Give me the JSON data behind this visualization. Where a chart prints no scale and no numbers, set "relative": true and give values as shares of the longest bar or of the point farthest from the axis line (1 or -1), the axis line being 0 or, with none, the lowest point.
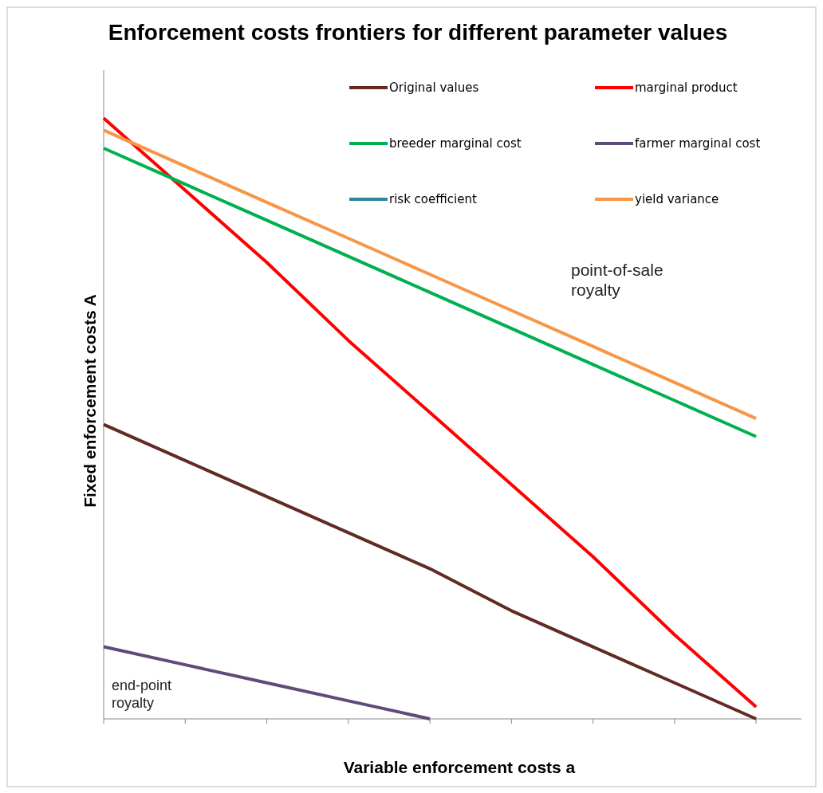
{
  "chart_data": {
    "type": "line",
    "title": "Enforcement costs frontiers for different parameter values",
    "xlabel": "Variable enforcement costs a",
    "ylabel": "Fixed enforcement costs A",
    "relative": true,
    "categories": [
      null,
      null,
      null,
      null,
      null,
      null,
      null,
      null,
      null
    ],
    "series": [
      {
        "name": "Original values",
        "color": "#632a24",
        "values": [
          0.49,
          0.43,
          0.37,
          0.31,
          0.25,
          0.18,
          0.12,
          0.06,
          0
        ]
      },
      {
        "name": "marginal product",
        "color": "#ff0000",
        "values": [
          1,
          0.88,
          0.76,
          0.63,
          0.51,
          0.39,
          0.27,
          0.14,
          0.02
        ]
      },
      {
        "name": "breeder marginal cost",
        "color": "#00b050",
        "values": [
          0.95,
          0.89,
          0.83,
          0.77,
          0.71,
          0.65,
          0.59,
          0.53,
          0.47
        ]
      },
      {
        "name": "farmer marginal cost",
        "color": "#604a7b",
        "values": [
          0.12,
          0.09,
          0.06,
          0.03,
          0,
          null,
          null,
          null,
          null
        ]
      },
      {
        "name": "risk coefficient",
        "color": "#31849b",
        "values": [
          null,
          null,
          null,
          null,
          null,
          null,
          null,
          null,
          null
        ]
      },
      {
        "name": "yield variance",
        "color": "#f79646",
        "values": [
          0.98,
          0.92,
          0.86,
          0.8,
          0.74,
          0.68,
          0.62,
          0.56,
          0.5
        ]
      }
    ],
    "legend": "top right",
    "marker": "none",
    "line_style": "solid",
    "annotations": [
      "point-of-sale royalty",
      "end-point royalty"
    ]
  }
}
